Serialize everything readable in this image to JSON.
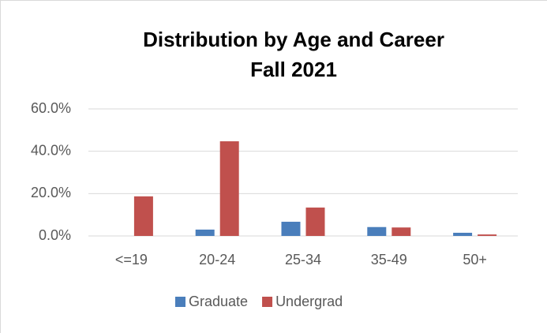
{
  "chart_data": {
    "type": "bar",
    "title": [
      "Distribution by Age and Career",
      "Fall 2021"
    ],
    "categories": [
      "<=19",
      "20-24",
      "25-34",
      "35-49",
      "50+"
    ],
    "series": [
      {
        "name": "Graduate",
        "color": "#4a7ebb",
        "values": [
          0,
          3.0,
          6.7,
          4.2,
          1.5
        ]
      },
      {
        "name": "Undergrad",
        "color": "#c0504d",
        "values": [
          18.7,
          44.7,
          13.4,
          4.0,
          0.7
        ]
      }
    ],
    "ylim": [
      0,
      60
    ],
    "yticks": [
      {
        "value": 0,
        "label": "0.0%"
      },
      {
        "value": 20,
        "label": "20.0%"
      },
      {
        "value": 40,
        "label": "40.0%"
      },
      {
        "value": 60,
        "label": "60.0%"
      }
    ],
    "grid": true,
    "legend": "bottom"
  }
}
